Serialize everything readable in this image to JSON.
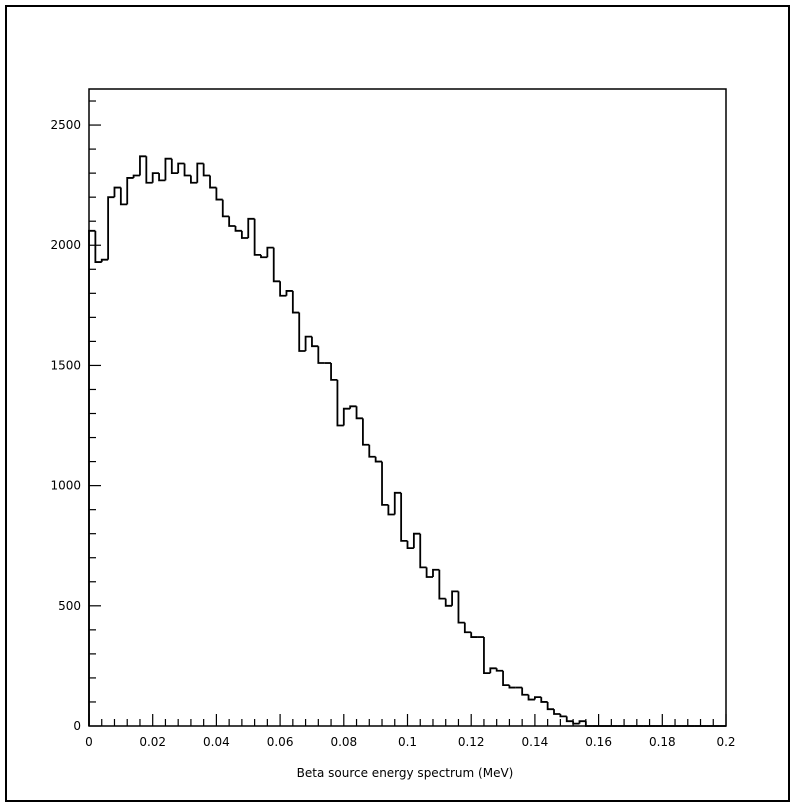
{
  "chart_data": {
    "type": "histogram",
    "title": "",
    "xlabel": "Beta source energy spectrum (MeV)",
    "ylabel": "",
    "xlim": [
      0,
      0.2
    ],
    "ylim": [
      0,
      2650
    ],
    "x_ticks": [
      0,
      0.02,
      0.04,
      0.06,
      0.08,
      0.1,
      0.12,
      0.14,
      0.16,
      0.18,
      0.2
    ],
    "x_tick_labels": [
      "0",
      "0.02",
      "0.04",
      "0.06",
      "0.08",
      "0.1",
      "0.12",
      "0.14",
      "0.16",
      "0.18",
      "0.2"
    ],
    "y_ticks": [
      0,
      500,
      1000,
      1500,
      2000,
      2500
    ],
    "y_tick_labels": [
      "0",
      "500",
      "1000",
      "1500",
      "2000",
      "2500"
    ],
    "bin_width": 0.002,
    "bin_start": 0,
    "counts": [
      2060,
      1930,
      1940,
      2200,
      2240,
      2170,
      2280,
      2290,
      2370,
      2260,
      2300,
      2270,
      2360,
      2300,
      2340,
      2290,
      2260,
      2340,
      2290,
      2240,
      2190,
      2120,
      2080,
      2060,
      2030,
      2110,
      1960,
      1950,
      1990,
      1850,
      1790,
      1810,
      1720,
      1560,
      1620,
      1580,
      1510,
      1510,
      1440,
      1250,
      1320,
      1330,
      1280,
      1170,
      1120,
      1100,
      920,
      880,
      970,
      770,
      740,
      800,
      660,
      620,
      650,
      530,
      500,
      560,
      430,
      390,
      370,
      370,
      220,
      240,
      230,
      170,
      160,
      160,
      130,
      110,
      120,
      100,
      70,
      50,
      40,
      20,
      10,
      20,
      0,
      0,
      0,
      0,
      0,
      0,
      0,
      0,
      0,
      0,
      0,
      0,
      0,
      0,
      0,
      0,
      0,
      0,
      0,
      0,
      0,
      0
    ],
    "grid": false,
    "legend": "none"
  }
}
